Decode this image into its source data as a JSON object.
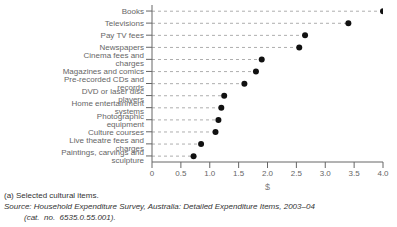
{
  "chart_data": {
    "type": "dot",
    "orientation": "horizontal",
    "categories": [
      "Books",
      "Televisions",
      "Pay TV fees",
      "Newspapers",
      "Cinema fees and charges",
      "Magazines and comics",
      "Pre-recorded CDs and records",
      "DVD or laser disc players",
      "Home entertainment systems",
      "Photographic equipment",
      "Culture courses",
      "Live theatre fees and charges",
      "Paintings, carvings and sculpture"
    ],
    "values": [
      4.0,
      3.4,
      2.65,
      2.55,
      1.9,
      1.8,
      1.6,
      1.25,
      1.2,
      1.15,
      1.1,
      0.85,
      0.72
    ],
    "xlim": [
      0,
      4.0
    ],
    "xticks": [
      0,
      0.5,
      {
        "value": 1.0,
        "label": "1.0"
      },
      1.5,
      {
        "value": 2.0,
        "label": "2.0"
      },
      2.5,
      {
        "value": 3.0,
        "label": "3.0"
      },
      3.5,
      {
        "value": 4.0,
        "label": "4.0"
      }
    ],
    "xlabel": "$",
    "annotations": [
      "(a) Selected cultural items.",
      "Source: Household Expenditure Survey, Australia: Detailed Expenditure Items, 2003–04",
      "         (cat.  no.  6535.0.55.001)."
    ],
    "color": "#111111",
    "grid": false
  }
}
